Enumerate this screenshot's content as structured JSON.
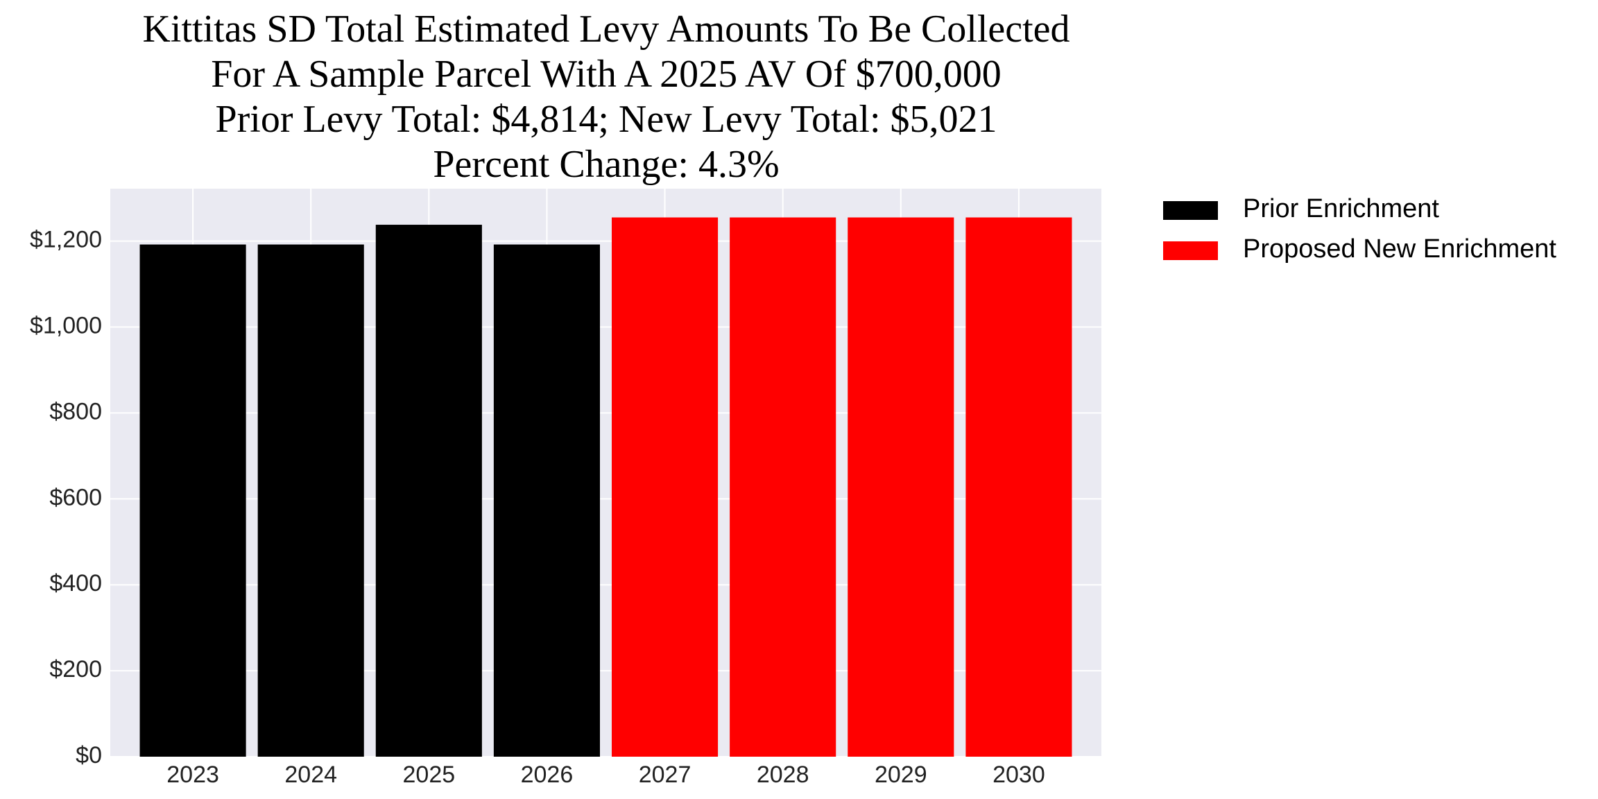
{
  "chart_data": {
    "type": "bar",
    "title": [
      "Kittitas SD Total Estimated Levy Amounts To Be Collected",
      "For A Sample Parcel With A 2025 AV Of $700,000",
      "Prior Levy Total:  $4,814; New Levy Total: $5,021",
      "Percent Change: 4.3%"
    ],
    "categories": [
      "2023",
      "2024",
      "2025",
      "2026",
      "2027",
      "2028",
      "2029",
      "2030"
    ],
    "series": [
      {
        "name": "Prior Enrichment",
        "color": "#000000",
        "values": [
          1192,
          1192,
          1238,
          1192,
          null,
          null,
          null,
          null
        ]
      },
      {
        "name": "Proposed New Enrichment",
        "color": "#ff0000",
        "values": [
          null,
          null,
          null,
          null,
          1255,
          1255,
          1255,
          1255
        ]
      }
    ],
    "ylim": [
      0,
      1322
    ],
    "yticks": [
      {
        "value": 0,
        "label": "$0"
      },
      {
        "value": 200,
        "label": "$200"
      },
      {
        "value": 400,
        "label": "$400"
      },
      {
        "value": 600,
        "label": "$600"
      },
      {
        "value": 800,
        "label": "$800"
      },
      {
        "value": 1000,
        "label": "$1,000"
      },
      {
        "value": 1200,
        "label": "$1,200"
      }
    ],
    "grid": true,
    "legend": "outside-upper-right"
  }
}
